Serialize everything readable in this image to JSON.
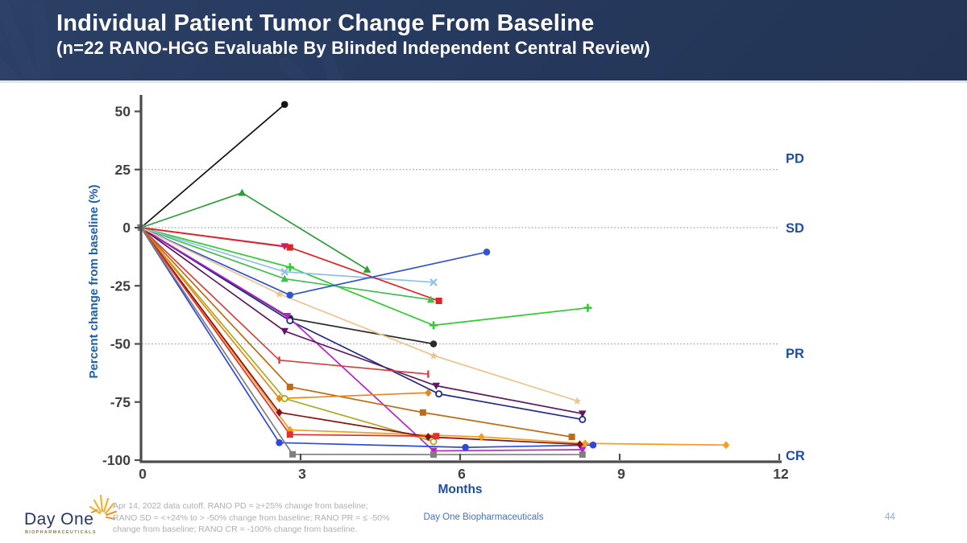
{
  "slide": {
    "title": "Individual Patient Tumor Change From Baseline",
    "subtitle": "(n=22 RANO-HGG Evaluable By Blinded Independent Central Review)"
  },
  "footer": {
    "footnote_line1": "Apr 14, 2022 data cutoff. RANO PD = ≥+25% change from baseline;",
    "footnote_line2": "RANO SD = <+24% to > -50% change from baseline; RANO PR = ≤ -50%",
    "footnote_line3": "change from baseline; RANO CR = -100% change from baseline.",
    "center_text": "Day One Biopharmaceuticals",
    "page_number": "44",
    "logo_name": "Day One",
    "logo_sub": "BIOPHARMACEUTICALS"
  },
  "colors": {
    "header_bg": "#263a5e",
    "axis": "#4d4d4d",
    "tick_label": "#404040",
    "grid": "#9a9a9a",
    "axis_title_blue": "#2060a8",
    "threshold_blue": "#1d4f9e"
  },
  "chart_data": {
    "type": "line",
    "title": "",
    "xlabel": "Months",
    "ylabel": "Percent change from baseline (%)",
    "xlim": [
      0,
      12
    ],
    "ylim": [
      -100,
      55
    ],
    "x_ticks": [
      0,
      3,
      6,
      9,
      12
    ],
    "y_ticks": [
      50,
      25,
      0,
      -25,
      -50,
      -75,
      -100
    ],
    "dotted_gridlines_at": [
      25,
      0,
      -50
    ],
    "legend_position": "none",
    "threshold_labels": [
      {
        "label": "PD",
        "y": 30
      },
      {
        "label": "SD",
        "y": 0
      },
      {
        "label": "PR",
        "y": -54
      },
      {
        "label": "CR",
        "y": -98
      }
    ],
    "series": [
      {
        "name": "patient-01",
        "color": "#141414",
        "marker": "circle",
        "points": [
          [
            0,
            0
          ],
          [
            2.7,
            53
          ]
        ]
      },
      {
        "name": "patient-02",
        "color": "#2b2b2b",
        "marker": "circle",
        "points": [
          [
            0,
            0
          ],
          [
            2.8,
            -39
          ],
          [
            5.5,
            -50
          ]
        ]
      },
      {
        "name": "patient-03",
        "color": "#2e9e3a",
        "marker": "triangle-up",
        "points": [
          [
            0,
            0
          ],
          [
            1.9,
            15
          ],
          [
            4.25,
            -18
          ]
        ]
      },
      {
        "name": "patient-04",
        "color": "#44be50",
        "marker": "triangle-up",
        "points": [
          [
            0,
            0
          ],
          [
            2.7,
            -22
          ],
          [
            5.45,
            -31
          ]
        ]
      },
      {
        "name": "patient-05",
        "color": "#2ecc2e",
        "marker": "plus",
        "points": [
          [
            0,
            0
          ],
          [
            2.8,
            -17
          ],
          [
            5.5,
            -42
          ],
          [
            8.4,
            -34.5
          ]
        ]
      },
      {
        "name": "patient-06",
        "color": "#8fc1e8",
        "marker": "x",
        "points": [
          [
            0,
            0
          ],
          [
            2.7,
            -19
          ],
          [
            5.5,
            -23.5
          ]
        ]
      },
      {
        "name": "patient-07",
        "color": "#cc1b6e",
        "marker": "triangle-down",
        "points": [
          [
            0,
            0
          ],
          [
            2.7,
            -8
          ]
        ]
      },
      {
        "name": "patient-08",
        "color": "#e02424",
        "marker": "square",
        "points": [
          [
            0,
            0
          ],
          [
            2.8,
            -8.5
          ],
          [
            5.6,
            -31.5
          ]
        ]
      },
      {
        "name": "patient-09",
        "color": "#3355cc",
        "marker": "circle",
        "points": [
          [
            0,
            0
          ],
          [
            2.8,
            -29
          ],
          [
            6.5,
            -10.5
          ]
        ]
      },
      {
        "name": "patient-10",
        "color": "#202a8c",
        "marker": "circle-open",
        "points": [
          [
            0,
            0
          ],
          [
            2.8,
            -40
          ],
          [
            5.6,
            -71.5
          ],
          [
            8.3,
            -82.5
          ]
        ]
      },
      {
        "name": "patient-11",
        "color": "#bb22cc",
        "marker": "triangle-down",
        "points": [
          [
            0,
            0
          ],
          [
            2.75,
            -38
          ],
          [
            5.5,
            -96
          ],
          [
            8.3,
            -95.5
          ]
        ]
      },
      {
        "name": "patient-12",
        "color": "#5e1a60",
        "marker": "triangle-down",
        "points": [
          [
            0,
            0
          ],
          [
            2.7,
            -44.5
          ],
          [
            5.55,
            -68
          ],
          [
            8.3,
            -80
          ]
        ]
      },
      {
        "name": "patient-13",
        "color": "#d64040",
        "marker": "tick",
        "points": [
          [
            0,
            0
          ],
          [
            2.6,
            -57
          ],
          [
            5.4,
            -63
          ]
        ]
      },
      {
        "name": "patient-14",
        "color": "#ebc490",
        "marker": "star",
        "points": [
          [
            0,
            0
          ],
          [
            2.6,
            -28.5
          ],
          [
            5.5,
            -55
          ],
          [
            8.2,
            -74.5
          ]
        ]
      },
      {
        "name": "patient-15",
        "color": "#bf6b15",
        "marker": "square",
        "points": [
          [
            0,
            0
          ],
          [
            2.8,
            -68.5
          ],
          [
            5.3,
            -79.5
          ],
          [
            8.1,
            -90
          ]
        ]
      },
      {
        "name": "patient-16",
        "color": "#aaaa22",
        "marker": "circle-open",
        "points": [
          [
            0,
            0
          ],
          [
            2.7,
            -73.5
          ],
          [
            5.5,
            -92
          ]
        ]
      },
      {
        "name": "patient-17",
        "color": "#e88619",
        "marker": "diamond",
        "points": [
          [
            0,
            0
          ],
          [
            2.6,
            -73.5
          ],
          [
            5.4,
            -71
          ]
        ]
      },
      {
        "name": "patient-18",
        "color": "#f59d1e",
        "marker": "diamond",
        "points": [
          [
            0,
            0
          ],
          [
            2.8,
            -87
          ],
          [
            6.4,
            -90
          ],
          [
            8.35,
            -92.8
          ],
          [
            11.0,
            -93.5
          ]
        ]
      },
      {
        "name": "patient-19",
        "color": "#8c1212",
        "marker": "diamond",
        "points": [
          [
            0,
            0
          ],
          [
            2.6,
            -79.5
          ],
          [
            5.4,
            -90
          ],
          [
            8.25,
            -93.2
          ]
        ]
      },
      {
        "name": "patient-20",
        "color": "#e03030",
        "marker": "square",
        "points": [
          [
            0,
            0
          ],
          [
            2.8,
            -89
          ],
          [
            5.55,
            -89.7
          ]
        ]
      },
      {
        "name": "patient-21",
        "color": "#2c49d8",
        "marker": "circle",
        "points": [
          [
            0,
            0
          ],
          [
            2.6,
            -92.5
          ],
          [
            6.1,
            -94.5
          ],
          [
            8.5,
            -93.5
          ]
        ]
      },
      {
        "name": "patient-22",
        "color": "#7f7f7f",
        "marker": "square",
        "points": [
          [
            0,
            0
          ],
          [
            2.85,
            -97.5
          ],
          [
            5.5,
            -97.6
          ],
          [
            8.3,
            -97.6
          ]
        ]
      }
    ]
  }
}
